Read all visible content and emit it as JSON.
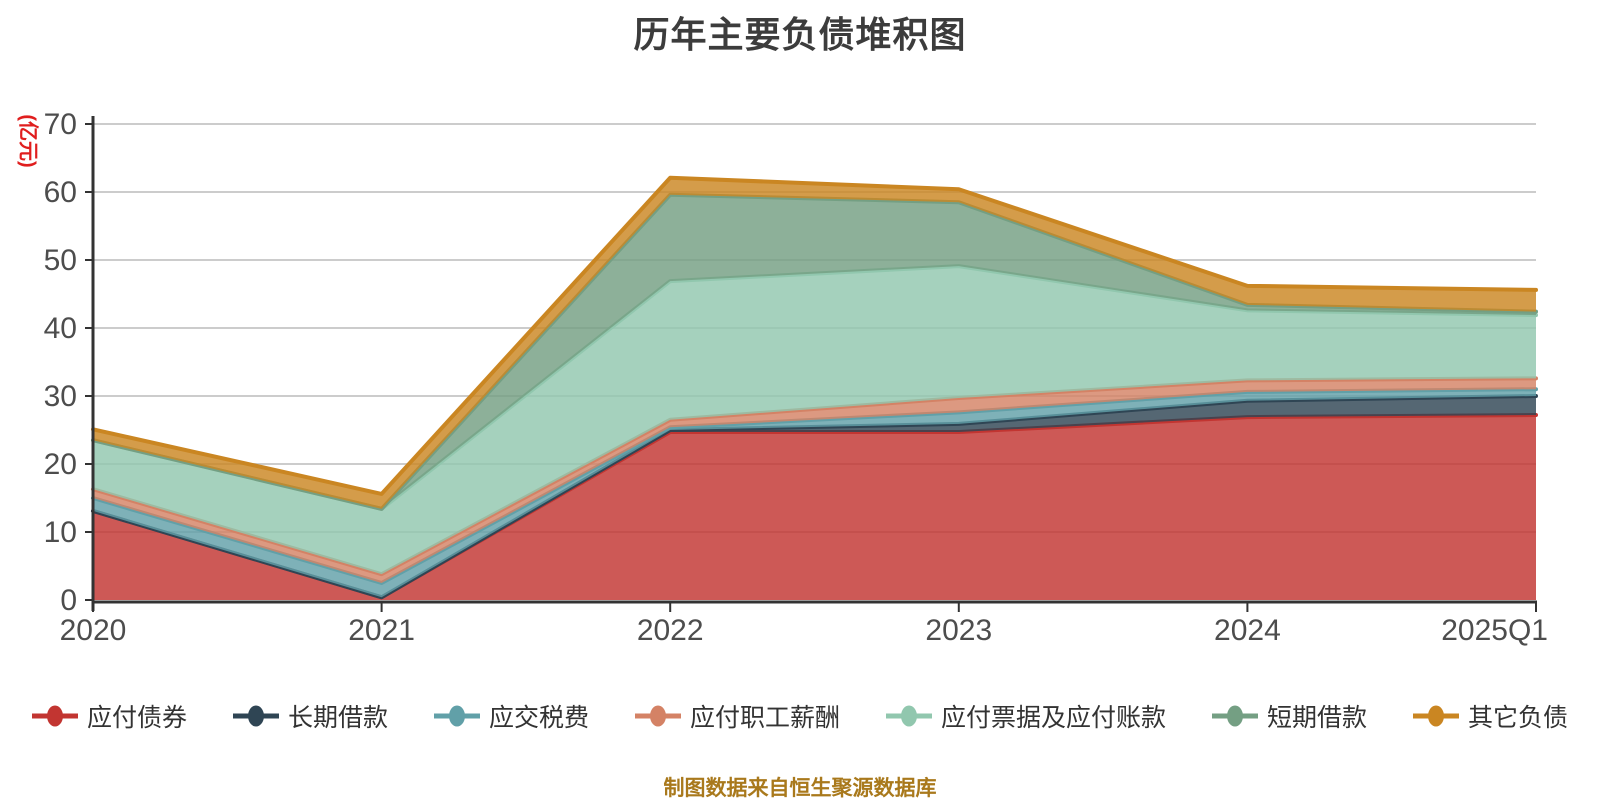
{
  "chart_data": {
    "type": "area",
    "stacked": true,
    "title": "历年主要负债堆积图",
    "ylabel": "(亿元)",
    "xlabel": "",
    "categories": [
      "2020",
      "2021",
      "2022",
      "2023",
      "2024",
      "2025Q1"
    ],
    "series": [
      {
        "id": "bonds-payable",
        "name": "应付债券",
        "color": "#c23531",
        "values": [
          13.1,
          0.4,
          24.7,
          24.7,
          26.9,
          27.2
        ]
      },
      {
        "id": "long-term-loans",
        "name": "长期借款",
        "color": "#2f4554",
        "values": [
          0,
          0,
          0.3,
          1.2,
          2.4,
          2.8
        ]
      },
      {
        "id": "taxes-payable",
        "name": "应交税费",
        "color": "#61a0a8",
        "values": [
          1.9,
          2.1,
          0.4,
          1.7,
          1.3,
          1.0
        ]
      },
      {
        "id": "payroll-payable",
        "name": "应付职工薪酬",
        "color": "#d48265",
        "values": [
          1.3,
          1.3,
          1.1,
          2.1,
          1.7,
          1.6
        ]
      },
      {
        "id": "notes-and-accounts-payable",
        "name": "应付票据及应付账款",
        "color": "#91c7ae",
        "values": [
          7.2,
          9.6,
          20.4,
          19.4,
          10.3,
          9.3
        ]
      },
      {
        "id": "short-term-loans",
        "name": "短期借款",
        "color": "#749f83",
        "values": [
          0,
          0,
          12.7,
          9.4,
          0.8,
          0.5
        ]
      },
      {
        "id": "other-liabilities",
        "name": "其它负债",
        "color": "#ca8622",
        "values": [
          1.6,
          2.2,
          2.5,
          1.9,
          2.8,
          3.2
        ]
      }
    ],
    "ylim": [
      0,
      70
    ],
    "y_ticks": [
      0,
      10,
      20,
      30,
      40,
      50,
      60,
      70
    ],
    "grid": true,
    "legend_position": "bottom"
  },
  "source_note": "制图数据来自恒生聚源数据库",
  "colors": {
    "title": "#3c3c3c",
    "axis_label": "#4d4d4d",
    "axis_line": "#333333",
    "gridline": "#cccccc",
    "y_name": "#e01e1e",
    "source": "#a9791c",
    "background": "#ffffff"
  }
}
